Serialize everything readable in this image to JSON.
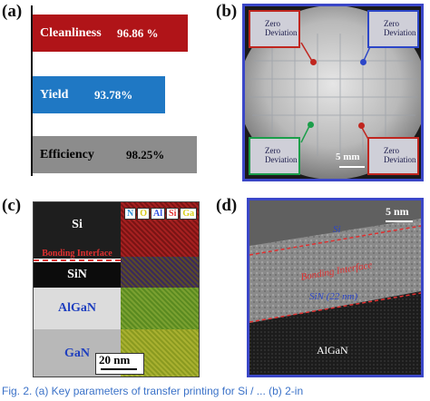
{
  "panels": {
    "a": "(a)",
    "b": "(b)",
    "c": "(c)",
    "d": "(d)"
  },
  "chart_data": {
    "type": "bar",
    "categories": [
      "Cleanliness",
      "Yield",
      "Efficiency"
    ],
    "values": [
      96.86,
      93.78,
      98.25
    ],
    "value_labels": [
      "96.86 %",
      "93.78%",
      "98.25%"
    ],
    "colors": [
      "#b01418",
      "#1f78c4",
      "#8c8c8c"
    ],
    "label_colors": [
      "#ffffff",
      "#ffffff",
      "#000000"
    ],
    "title": "",
    "xlabel": "",
    "ylabel": ""
  },
  "wafer": {
    "inset_text": "Zero Deviation",
    "inset_line1": "Zero",
    "inset_line2": "Deviation",
    "scale_bar": "5 mm",
    "dot_colors": [
      "#c0261f",
      "#2c46c8",
      "#1b9e4a",
      "#c0261f"
    ]
  },
  "tem": {
    "layers": {
      "si": "Si",
      "bonding": "Bonding Interface",
      "sin": "SiN",
      "algan": "AlGaN",
      "gan": "GaN"
    },
    "elements": [
      "N",
      "O",
      "Al",
      "Si",
      "Ga"
    ],
    "element_colors": [
      "#2f8fd8",
      "#d8c91a",
      "#3050e0",
      "#e03030",
      "#d8d01a"
    ],
    "scale_bar": "20 nm"
  },
  "hrtem": {
    "scale_bar": "5 nm",
    "si": "Si",
    "bonding": "Bonding Interface",
    "sin": "SiN (22 nm)",
    "algan": "AlGaN"
  },
  "caption": "Fig. 2.  (a)  Key parameters of transfer printing for Si / ... (b) 2-in"
}
